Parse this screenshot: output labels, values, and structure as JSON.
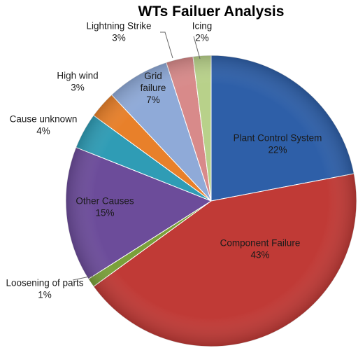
{
  "chart_data": {
    "type": "pie",
    "title": "WTs Failuer Analysis",
    "slices": [
      {
        "label": "Plant Control System",
        "label_lines": [
          "Plant Control System"
        ],
        "value": 22,
        "pct_text": "22%",
        "color": "#2e5fa8"
      },
      {
        "label": "Component Failure",
        "label_lines": [
          "Component Failure"
        ],
        "value": 43,
        "pct_text": "43%",
        "color": "#c03a36"
      },
      {
        "label": "Loosening of parts",
        "label_lines": [
          "Loosening of parts"
        ],
        "value": 1,
        "pct_text": "1%",
        "color": "#7aa03a"
      },
      {
        "label": "Other Causes",
        "label_lines": [
          "Other Causes"
        ],
        "value": 15,
        "pct_text": "15%",
        "color": "#6c4c9a"
      },
      {
        "label": "Cause unknown",
        "label_lines": [
          "Cause unknown"
        ],
        "value": 4,
        "pct_text": "4%",
        "color": "#2f9cb5"
      },
      {
        "label": "High wind",
        "label_lines": [
          "High wind"
        ],
        "value": 3,
        "pct_text": "3%",
        "color": "#e8802a"
      },
      {
        "label": "Grid failure",
        "label_lines": [
          "Grid",
          "failure"
        ],
        "value": 7,
        "pct_text": "7%",
        "color": "#8faad8"
      },
      {
        "label": "Lightning Strike",
        "label_lines": [
          "Lightning Strike"
        ],
        "value": 3,
        "pct_text": "3%",
        "color": "#d88a8a"
      },
      {
        "label": "Icing",
        "label_lines": [
          "Icing"
        ],
        "value": 2,
        "pct_text": "2%",
        "color": "#b8d18a"
      }
    ]
  }
}
